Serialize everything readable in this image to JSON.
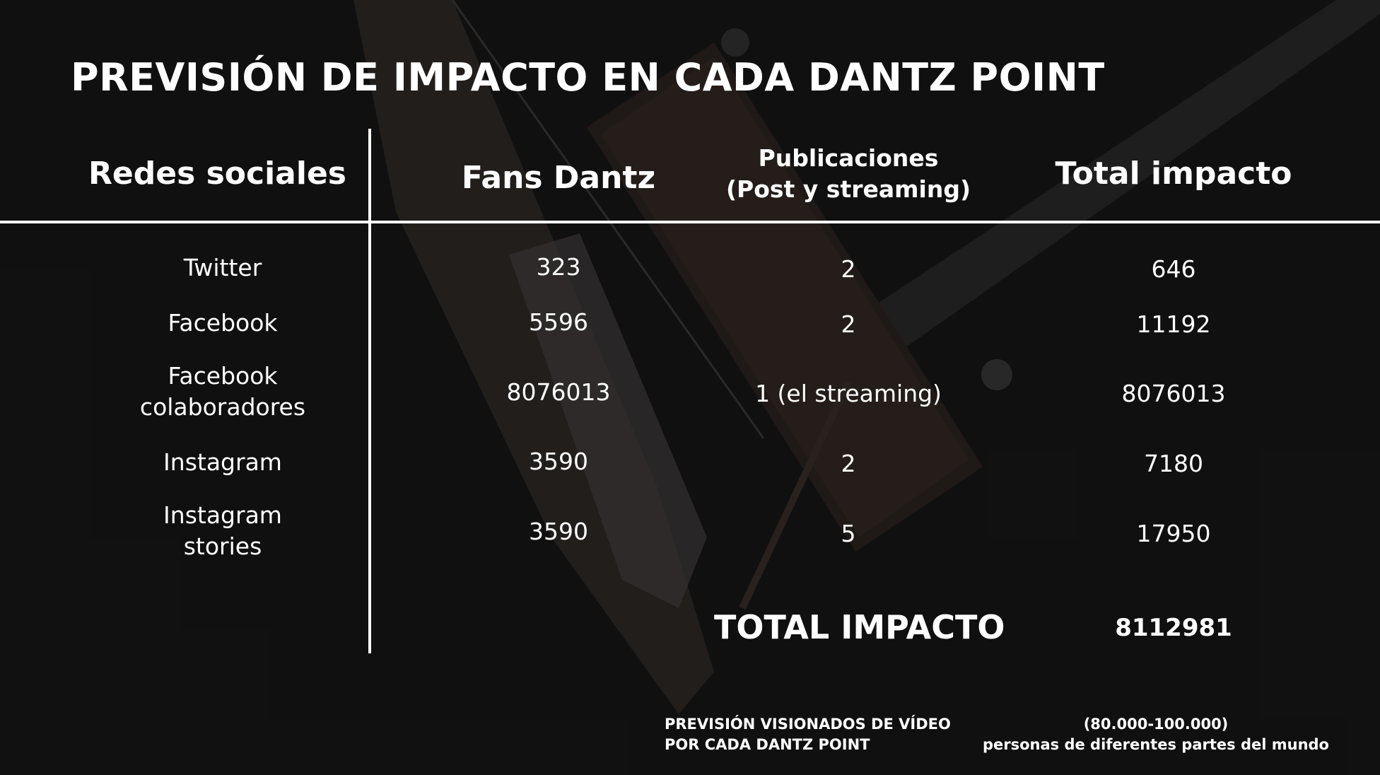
{
  "title": "PREVISIÓN DE IMPACTO EN CADA DANTZ POINT",
  "columns": {
    "redes": "Redes sociales",
    "fans": "Fans Dantz",
    "pub_line1": "Publicaciones",
    "pub_line2": "(Post y streaming)",
    "total": "Total impacto"
  },
  "rows": [
    {
      "red": "Twitter",
      "red2": "",
      "fans": "323",
      "pub": "2",
      "total": "646"
    },
    {
      "red": "Facebook",
      "red2": "",
      "fans": "5596",
      "pub": "2",
      "total": "11192"
    },
    {
      "red": "Facebook",
      "red2": "colaboradores",
      "fans": "8076013",
      "pub": "1 (el streaming)",
      "total": "8076013"
    },
    {
      "red": "Instagram",
      "red2": "",
      "fans": "3590",
      "pub": "2",
      "total": "7180"
    },
    {
      "red": "Instagram",
      "red2": "stories",
      "fans": "3590",
      "pub": "5",
      "total": "17950"
    }
  ],
  "total": {
    "label": "TOTAL IMPACTO",
    "value": "8112981"
  },
  "footer": {
    "left_line1": "PREVISIÓN VISIONADOS DE VÍDEO",
    "left_line2": "POR CADA DANTZ POINT",
    "right_line1": "(80.000-100.000)",
    "right_line2": "personas de diferentes partes del mundo"
  }
}
